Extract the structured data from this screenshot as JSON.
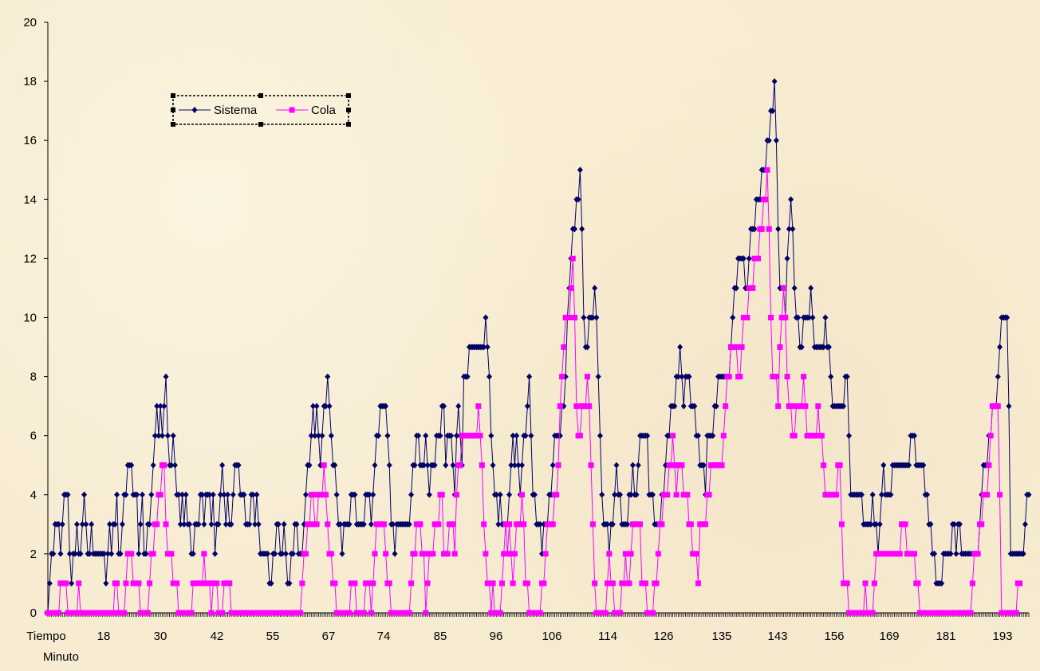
{
  "chart_data": {
    "type": "line",
    "title": "",
    "xlabel": "Minuto",
    "ylabel": "",
    "ylim": [
      0,
      20
    ],
    "yticks": [
      0,
      2,
      4,
      6,
      8,
      10,
      12,
      14,
      16,
      18,
      20
    ],
    "xtick_labels": [
      "Tiempo",
      "18",
      "30",
      "42",
      "55",
      "67",
      "74",
      "85",
      "96",
      "106",
      "114",
      "126",
      "135",
      "143",
      "156",
      "169",
      "181",
      "193"
    ],
    "legend": {
      "placement": "top-left",
      "entries": [
        "Sistema",
        "Cola"
      ]
    },
    "grid": false,
    "colors": {
      "Sistema": "#000066",
      "Cola": "#ff00ff"
    },
    "series": [
      {
        "name": "Sistema",
        "values": [
          0,
          1,
          2,
          2,
          3,
          3,
          3,
          2,
          3,
          4,
          4,
          4,
          2,
          1,
          2,
          2,
          3,
          2,
          2,
          3,
          4,
          3,
          2,
          2,
          3,
          2,
          2,
          2,
          2,
          2,
          2,
          2,
          1,
          2,
          3,
          2,
          3,
          3,
          4,
          2,
          2,
          3,
          4,
          4,
          5,
          5,
          5,
          4,
          4,
          4,
          2,
          3,
          4,
          2,
          2,
          3,
          3,
          4,
          5,
          6,
          7,
          6,
          7,
          6,
          7,
          8,
          6,
          5,
          5,
          6,
          5,
          4,
          4,
          3,
          4,
          3,
          4,
          3,
          3,
          2,
          2,
          3,
          3,
          3,
          4,
          4,
          3,
          4,
          4,
          4,
          3,
          4,
          2,
          3,
          3,
          4,
          5,
          4,
          3,
          4,
          3,
          3,
          4,
          5,
          5,
          5,
          4,
          4,
          4,
          3,
          3,
          3,
          4,
          4,
          3,
          4,
          3,
          2,
          2,
          2,
          2,
          2,
          1,
          1,
          2,
          2,
          3,
          3,
          2,
          2,
          3,
          2,
          1,
          1,
          2,
          2,
          3,
          3,
          2,
          2,
          2,
          3,
          4,
          5,
          5,
          6,
          7,
          6,
          7,
          6,
          5,
          6,
          7,
          7,
          8,
          7,
          6,
          5,
          5,
          4,
          3,
          3,
          2,
          3,
          3,
          3,
          3,
          4,
          4,
          4,
          3,
          3,
          3,
          3,
          3,
          4,
          4,
          4,
          3,
          4,
          5,
          6,
          6,
          7,
          7,
          7,
          7,
          6,
          5,
          3,
          3,
          2,
          3,
          3,
          3,
          3,
          3,
          3,
          3,
          3,
          4,
          5,
          5,
          6,
          6,
          5,
          5,
          5,
          6,
          5,
          4,
          5,
          5,
          5,
          6,
          6,
          6,
          7,
          7,
          5,
          6,
          6,
          6,
          5,
          4,
          6,
          7,
          6,
          5,
          8,
          8,
          8,
          9,
          9,
          9,
          9,
          9,
          9,
          9,
          9,
          9,
          10,
          9,
          8,
          6,
          5,
          4,
          4,
          3,
          4,
          3,
          3,
          3,
          3,
          4,
          5,
          6,
          5,
          6,
          5,
          4,
          5,
          6,
          6,
          7,
          8,
          6,
          4,
          4,
          3,
          3,
          3,
          2,
          3,
          3,
          3,
          4,
          4,
          5,
          6,
          6,
          6,
          6,
          7,
          7,
          8,
          10,
          11,
          12,
          13,
          13,
          14,
          14,
          15,
          13,
          10,
          9,
          9,
          10,
          10,
          10,
          11,
          10,
          8,
          6,
          4,
          3,
          3,
          3,
          2,
          3,
          3,
          4,
          5,
          4,
          4,
          3,
          3,
          3,
          3,
          4,
          4,
          5,
          4,
          4,
          5,
          6,
          6,
          6,
          6,
          6,
          4,
          4,
          4,
          3,
          3,
          3,
          3,
          4,
          4,
          5,
          6,
          6,
          7,
          7,
          7,
          8,
          8,
          9,
          8,
          7,
          8,
          8,
          8,
          7,
          7,
          7,
          6,
          6,
          5,
          5,
          5,
          4,
          6,
          6,
          6,
          6,
          7,
          7,
          8,
          8,
          8,
          8,
          8,
          8,
          8,
          9,
          10,
          11,
          11,
          12,
          12,
          12,
          12,
          11,
          11,
          12,
          13,
          13,
          13,
          14,
          14,
          14,
          15,
          15,
          15,
          16,
          16,
          17,
          17,
          18,
          16,
          13,
          11,
          11,
          11,
          10,
          12,
          13,
          14,
          13,
          11,
          10,
          10,
          9,
          9,
          10,
          10,
          10,
          10,
          11,
          10,
          9,
          9,
          9,
          9,
          9,
          9,
          10,
          9,
          9,
          8,
          7,
          7,
          7,
          7,
          7,
          7,
          7,
          8,
          8,
          6,
          4,
          4,
          4,
          4,
          4,
          4,
          4,
          3,
          3,
          3,
          3,
          3,
          4,
          3,
          3,
          2,
          3,
          4,
          5,
          4,
          4,
          4,
          4,
          5,
          5,
          5,
          5,
          5,
          5,
          5,
          5,
          5,
          5,
          6,
          6,
          6,
          5,
          5,
          5,
          5,
          5,
          4,
          4,
          3,
          3,
          2,
          2,
          1,
          1,
          1,
          1,
          2,
          2,
          2,
          2,
          2,
          3,
          3,
          2,
          3,
          3,
          2,
          2,
          2,
          2,
          2,
          2,
          2,
          2,
          2,
          2,
          3,
          4,
          5,
          5,
          5,
          6,
          6,
          7,
          7,
          7,
          8,
          9,
          10,
          10,
          10,
          10,
          7,
          2,
          2,
          2,
          2,
          2,
          2,
          2,
          2,
          3,
          4,
          4
        ]
      },
      {
        "name": "Cola",
        "values": [
          0,
          0,
          0,
          0,
          0,
          0,
          0,
          1,
          1,
          1,
          1,
          0,
          0,
          0,
          0,
          0,
          0,
          1,
          0,
          0,
          0,
          0,
          0,
          0,
          0,
          0,
          0,
          0,
          0,
          0,
          0,
          0,
          0,
          0,
          0,
          0,
          0,
          1,
          1,
          0,
          0,
          0,
          0,
          1,
          2,
          2,
          2,
          1,
          1,
          1,
          1,
          0,
          0,
          0,
          0,
          0,
          1,
          2,
          2,
          3,
          3,
          4,
          4,
          5,
          5,
          3,
          2,
          2,
          2,
          1,
          1,
          1,
          0,
          0,
          0,
          0,
          0,
          0,
          0,
          0,
          1,
          1,
          1,
          1,
          1,
          1,
          2,
          1,
          1,
          1,
          0,
          1,
          1,
          1,
          0,
          0,
          0,
          1,
          1,
          1,
          1,
          0,
          0,
          0,
          0,
          0,
          0,
          0,
          0,
          0,
          0,
          0,
          0,
          0,
          0,
          0,
          0,
          0,
          0,
          0,
          0,
          0,
          0,
          0,
          0,
          0,
          0,
          0,
          0,
          0,
          0,
          0,
          0,
          0,
          0,
          0,
          0,
          0,
          0,
          0,
          1,
          2,
          2,
          3,
          3,
          4,
          4,
          3,
          3,
          4,
          4,
          4,
          5,
          4,
          3,
          2,
          2,
          1,
          1,
          0,
          0,
          0,
          0,
          0,
          0,
          0,
          0,
          1,
          1,
          1,
          0,
          0,
          0,
          0,
          0,
          1,
          1,
          1,
          0,
          1,
          2,
          3,
          3,
          3,
          3,
          3,
          2,
          1,
          1,
          0,
          0,
          0,
          0,
          0,
          0,
          0,
          0,
          0,
          0,
          0,
          1,
          2,
          2,
          3,
          3,
          3,
          2,
          2,
          0,
          1,
          2,
          2,
          2,
          3,
          3,
          3,
          4,
          4,
          2,
          2,
          2,
          3,
          3,
          3,
          2,
          4,
          5,
          5,
          6,
          6,
          6,
          6,
          6,
          6,
          6,
          6,
          6,
          7,
          6,
          5,
          3,
          2,
          1,
          1,
          0,
          1,
          0,
          0,
          0,
          0,
          1,
          2,
          3,
          2,
          3,
          2,
          1,
          2,
          3,
          3,
          3,
          4,
          3,
          1,
          1,
          0,
          0,
          0,
          0,
          0,
          0,
          0,
          1,
          1,
          2,
          3,
          3,
          3,
          3,
          4,
          4,
          5,
          7,
          8,
          9,
          10,
          10,
          10,
          11,
          12,
          10,
          7,
          6,
          6,
          7,
          7,
          7,
          8,
          7,
          5,
          3,
          1,
          0,
          0,
          0,
          0,
          0,
          0,
          1,
          2,
          1,
          1,
          0,
          0,
          0,
          0,
          1,
          1,
          2,
          1,
          1,
          2,
          3,
          3,
          3,
          3,
          3,
          1,
          1,
          1,
          0,
          0,
          0,
          0,
          1,
          1,
          2,
          3,
          3,
          4,
          4,
          4,
          5,
          5,
          6,
          5,
          4,
          5,
          5,
          5,
          4,
          4,
          4,
          3,
          3,
          2,
          2,
          2,
          1,
          3,
          3,
          3,
          3,
          4,
          4,
          5,
          5,
          5,
          5,
          5,
          5,
          5,
          6,
          7,
          8,
          8,
          9,
          9,
          9,
          9,
          8,
          8,
          9,
          10,
          10,
          10,
          11,
          11,
          11,
          12,
          12,
          12,
          13,
          13,
          14,
          14,
          15,
          13,
          10,
          8,
          8,
          8,
          7,
          9,
          10,
          11,
          10,
          8,
          7,
          7,
          6,
          6,
          7,
          7,
          7,
          7,
          8,
          7,
          6,
          6,
          6,
          6,
          6,
          6,
          7,
          6,
          6,
          5,
          4,
          4,
          4,
          4,
          4,
          4,
          4,
          5,
          5,
          3,
          1,
          1,
          1,
          0,
          0,
          0,
          0,
          0,
          0,
          0,
          0,
          0,
          1,
          0,
          0,
          0,
          0,
          1,
          2,
          2,
          2,
          2,
          2,
          2,
          2,
          2,
          2,
          2,
          2,
          2,
          2,
          2,
          3,
          3,
          3,
          2,
          2,
          2,
          2,
          2,
          1,
          1,
          0,
          0,
          0,
          0,
          0,
          0,
          0,
          0,
          0,
          0,
          0,
          0,
          0,
          0,
          0,
          0,
          0,
          0,
          0,
          0,
          0,
          0,
          0,
          0,
          0,
          0,
          0,
          0,
          0,
          1,
          2,
          2,
          2,
          3,
          3,
          4,
          4,
          4,
          5,
          6,
          7,
          7,
          7,
          7,
          4,
          0,
          0,
          0,
          0,
          0,
          0,
          0,
          0,
          0,
          1,
          1
        ]
      }
    ]
  }
}
